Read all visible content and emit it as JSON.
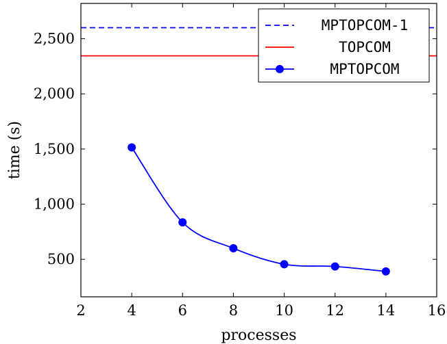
{
  "chart_data": {
    "type": "line",
    "xlabel": "processes",
    "ylabel": "time (s)",
    "xlim": [
      2,
      16
    ],
    "ylim": [
      160,
      2820
    ],
    "x_ticks": [
      2,
      4,
      6,
      8,
      10,
      12,
      14,
      16
    ],
    "x_tick_labels": [
      "2",
      "4",
      "6",
      "8",
      "10",
      "12",
      "14",
      "16"
    ],
    "y_ticks": [
      500,
      1000,
      1500,
      2000,
      2500
    ],
    "y_tick_labels": [
      "500",
      "1,000",
      "1,500",
      "2,000",
      "2,500"
    ],
    "grid": false,
    "legend_position": "top-right",
    "series": [
      {
        "name": "MPTOPCOM-1",
        "kind": "hline",
        "value": 2600,
        "color": "#0000ff",
        "dashed": true
      },
      {
        "name": "TOPCOM",
        "kind": "hline",
        "value": 2345,
        "color": "#ff0000",
        "dashed": false
      },
      {
        "name": "MPTOPCOM",
        "kind": "line",
        "color": "#0000ff",
        "markers": true,
        "smooth": true,
        "x": [
          4,
          6,
          8,
          10,
          12,
          14
        ],
        "y": [
          1515,
          835,
          600,
          455,
          435,
          390
        ]
      }
    ]
  }
}
